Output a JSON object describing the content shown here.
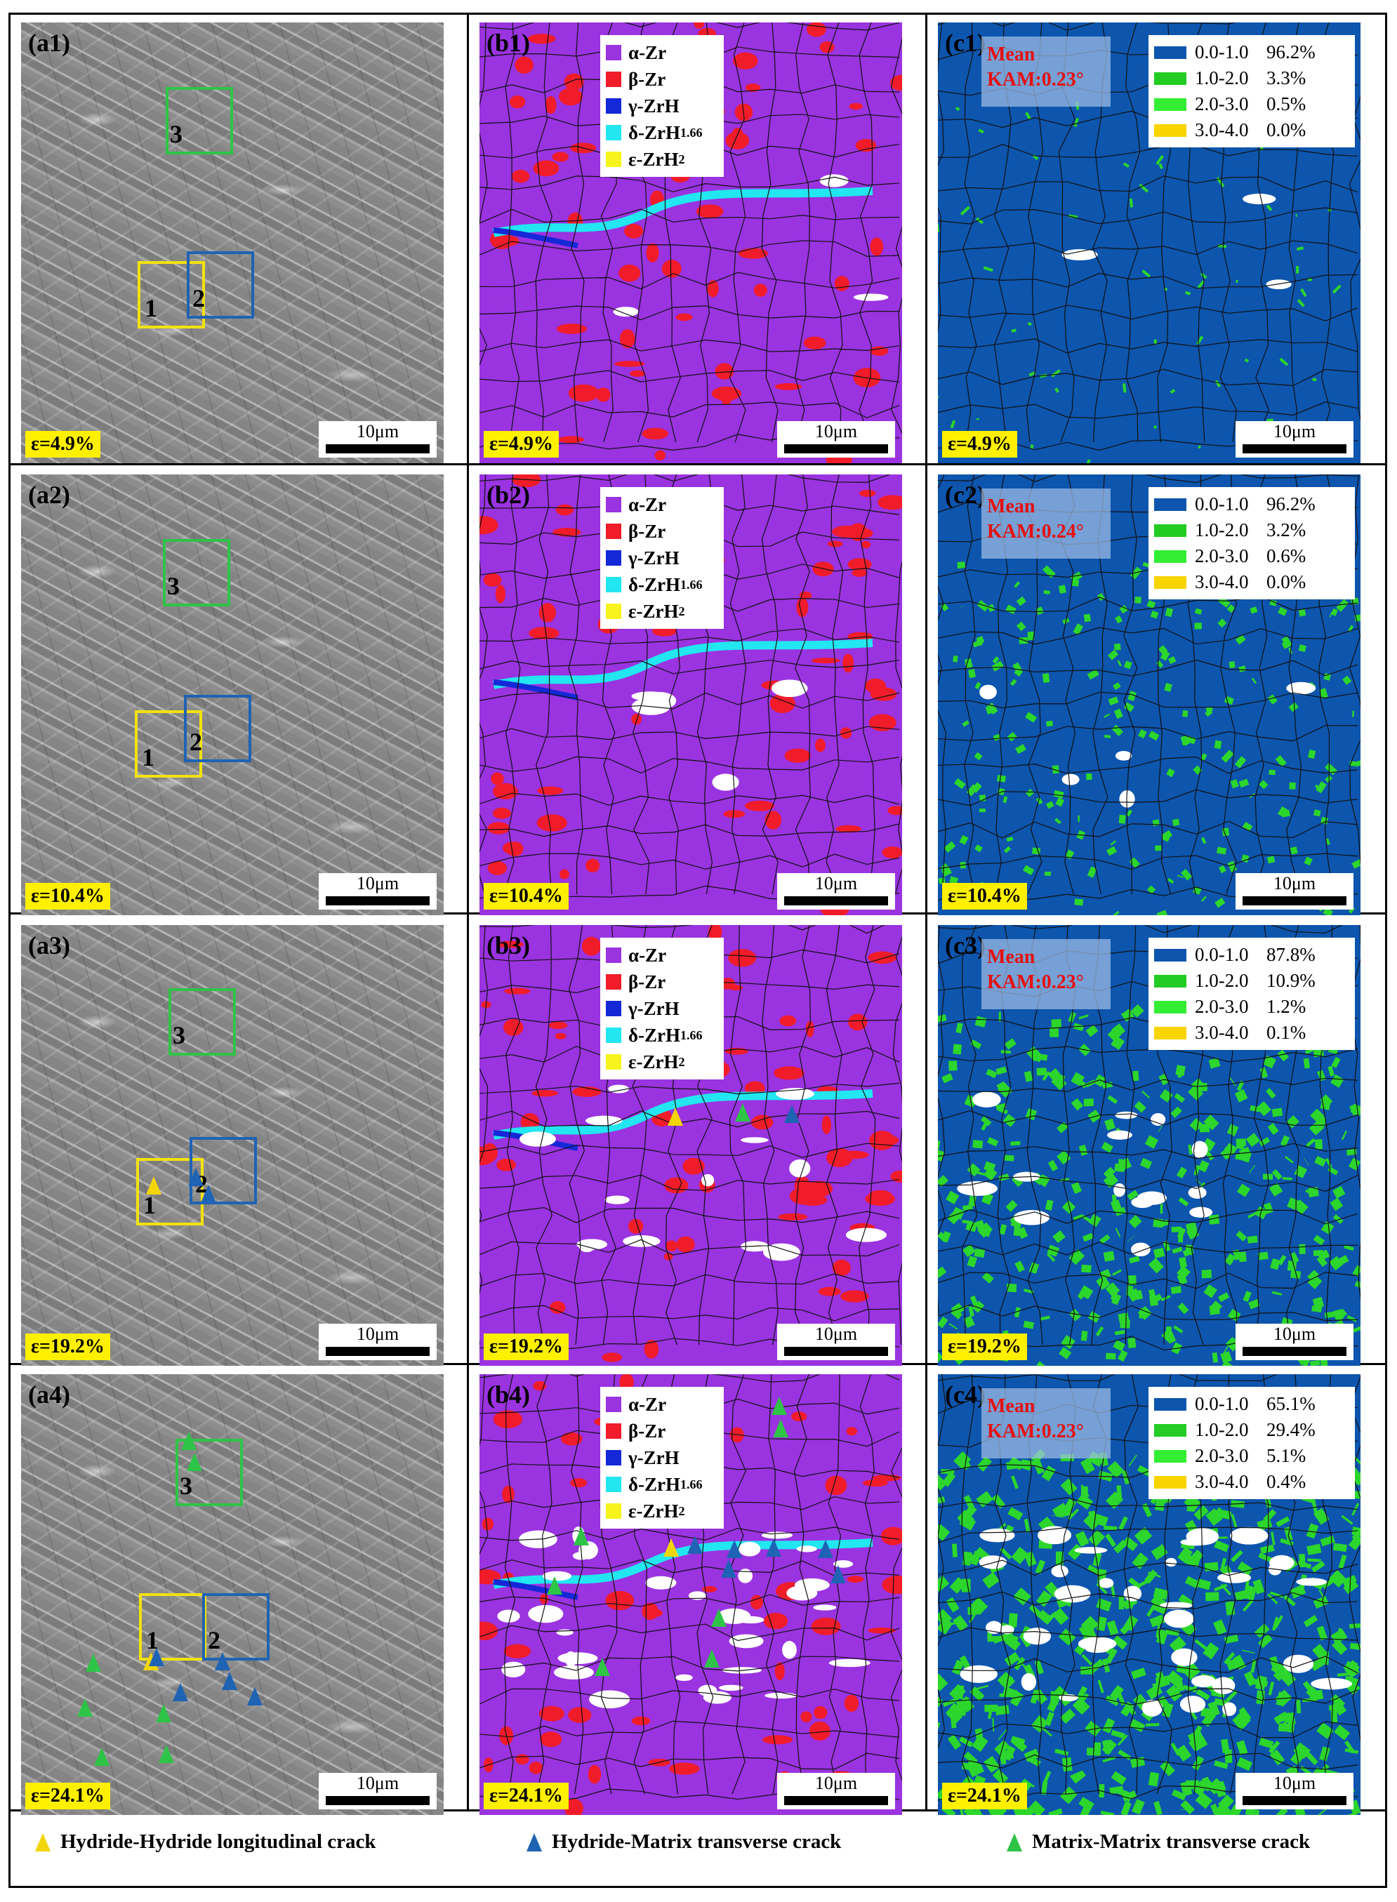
{
  "rows": [
    {
      "strain": "ε=4.9%",
      "a_label": "(a1)",
      "b_label": "(b1)",
      "c_label": "(c1)",
      "box_labels": [
        "1",
        "2",
        "3"
      ],
      "kam_mean": [
        "Mean",
        "KAM:0.23°"
      ],
      "kam_pct": [
        "96.2%",
        "3.3%",
        "0.5%",
        "0.0%"
      ]
    },
    {
      "strain": "ε=10.4%",
      "a_label": "(a2)",
      "b_label": "(b2)",
      "c_label": "(c2)",
      "box_labels": [
        "1",
        "2",
        "3"
      ],
      "kam_mean": [
        "Mean",
        "KAM:0.24°"
      ],
      "kam_pct": [
        "96.2%",
        "3.2%",
        "0.6%",
        "0.0%"
      ]
    },
    {
      "strain": "ε=19.2%",
      "a_label": "(a3)",
      "b_label": "(b3)",
      "c_label": "(c3)",
      "box_labels": [
        "1",
        "2",
        "3"
      ],
      "kam_mean": [
        "Mean",
        "KAM:0.23°"
      ],
      "kam_pct": [
        "87.8%",
        "10.9%",
        "1.2%",
        "0.1%"
      ]
    },
    {
      "strain": "ε=24.1%",
      "a_label": "(a4)",
      "b_label": "(b4)",
      "c_label": "(c4)",
      "box_labels": [
        "1",
        "2",
        "3"
      ],
      "kam_mean": [
        "Mean",
        "KAM:0.23°"
      ],
      "kam_pct": [
        "65.1%",
        "29.4%",
        "5.1%",
        "0.4%"
      ]
    }
  ],
  "scale_bar": "10μm",
  "phase_legend": [
    {
      "label": "α-Zr",
      "color": "#9a33e0"
    },
    {
      "label": "β-Zr",
      "color": "#f01c2a"
    },
    {
      "label": "γ-ZrH",
      "color": "#1428d8"
    },
    {
      "label": "δ-ZrH",
      "sub": "1.66",
      "color": "#22e6f0"
    },
    {
      "label": "ε-ZrH",
      "sub": "2",
      "color": "#f6f41c"
    }
  ],
  "kam_ranges": [
    {
      "range": "0.0-1.0",
      "color": "#0d55ad"
    },
    {
      "range": "1.0-2.0",
      "color": "#22cc22"
    },
    {
      "range": "2.0-3.0",
      "color": "#33ee33"
    },
    {
      "range": "3.0-4.0",
      "color": "#f8d400"
    }
  ],
  "box_colors": {
    "1": "#f2e20e",
    "2": "#1f63b4",
    "3": "#2ec447"
  },
  "crack_legend": [
    {
      "label": "Hydride-Hydride longitudinal crack",
      "color": "#f2d60a"
    },
    {
      "label": "Hydride-Matrix transverse crack",
      "color": "#1f63b4"
    },
    {
      "label": "Matrix-Matrix transverse crack",
      "color": "#2ec447"
    }
  ]
}
